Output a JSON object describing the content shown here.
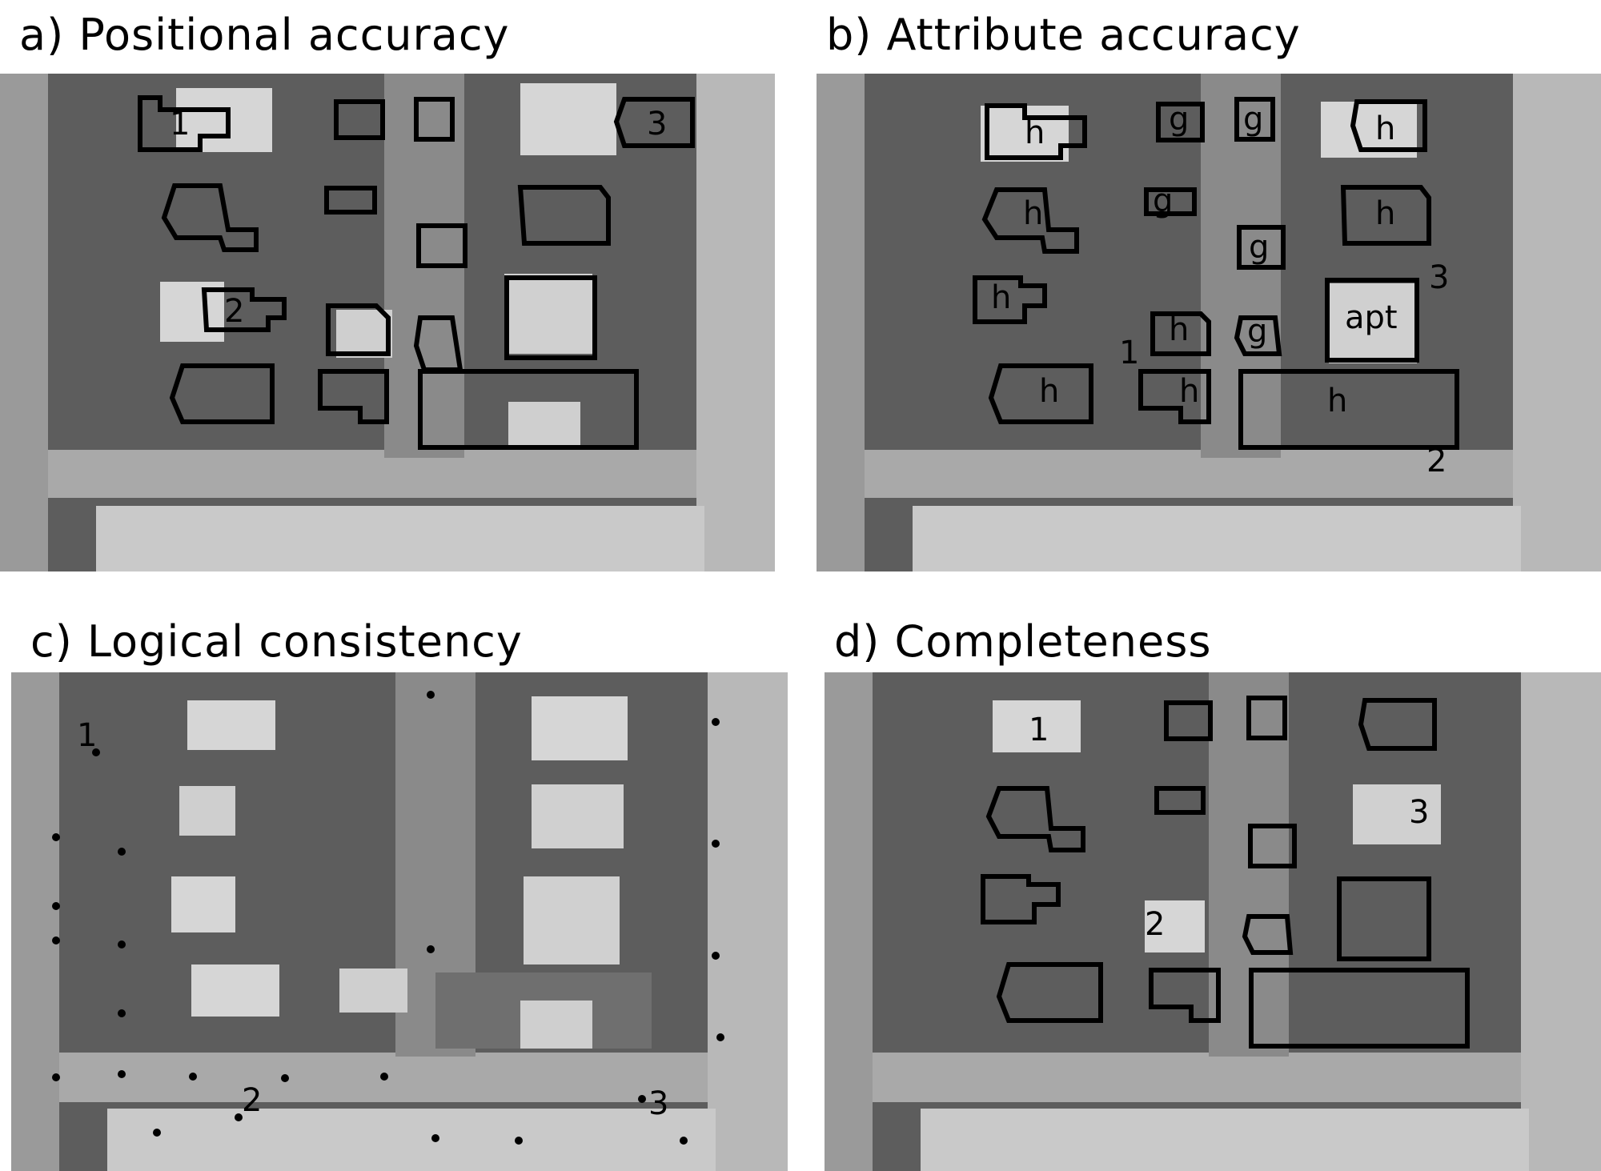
{
  "panels": {
    "a": {
      "title": "a) Positional accuracy",
      "labels": [
        "1",
        "2",
        "3"
      ]
    },
    "b": {
      "title": "b) Attribute accuracy",
      "attr_labels": [
        "h",
        "g",
        "g",
        "h",
        "h",
        "g",
        "h",
        "g",
        "h",
        "h",
        "g",
        "apt",
        "h",
        "h",
        "h"
      ],
      "numbers": [
        "1",
        "2",
        "3"
      ]
    },
    "c": {
      "title": "c) Logical consistency",
      "labels": [
        "1",
        "2",
        "3"
      ]
    },
    "d": {
      "title": "d) Completeness",
      "labels": [
        "1",
        "2",
        "3"
      ]
    }
  },
  "colors": {
    "ink": "#000000",
    "ground": "#5d5d5d",
    "road": "#a9a9a9",
    "roof": "#d6d6d6",
    "background": "#ffffff"
  }
}
